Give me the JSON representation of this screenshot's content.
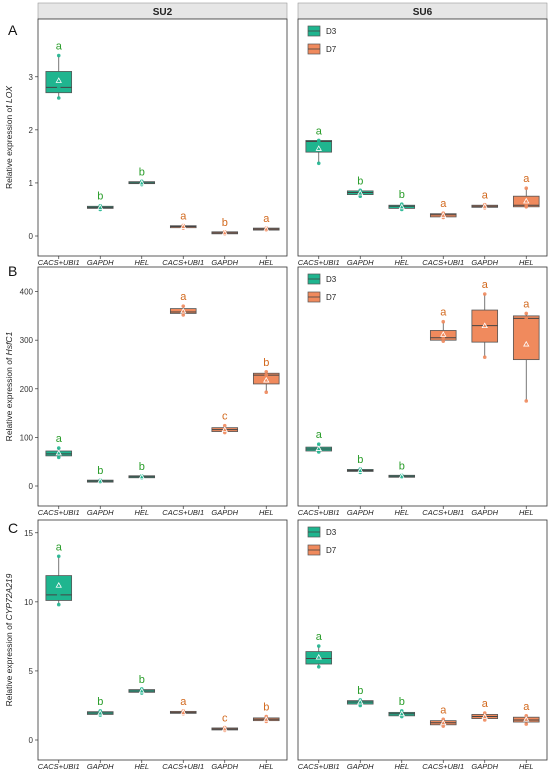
{
  "strip_labels": [
    "SU2",
    "SU6"
  ],
  "colors": {
    "D3": "#1fb58f",
    "D7": "#f08a5d",
    "strip_bg": "#e6e6e6",
    "box_line": "#555555",
    "letter_D3": "#2a9d2a",
    "letter_D7": "#d2691e"
  },
  "legend": [
    "D3",
    "D7"
  ],
  "chart_data": {
    "type": "boxplot",
    "x_categories": [
      "CACS+UBI1",
      "GAPDH",
      "HEL",
      "CACS+UBI1",
      "GAPDH",
      "HEL"
    ],
    "groups": [
      "D3",
      "D3",
      "D3",
      "D7",
      "D7",
      "D7"
    ],
    "rows": [
      {
        "tag": "A",
        "ylabel": "Relative expression of",
        "gene": "LOX",
        "ylim": [
          0,
          3.9
        ],
        "yticks": [
          0,
          1,
          2,
          3
        ],
        "panels": [
          {
            "strip": "SU2",
            "legend": false,
            "boxes": [
              {
                "q1": 2.7,
                "med": 2.8,
                "q3": 3.1,
                "lo": 2.6,
                "hi": 3.4,
                "mean": 2.93,
                "letter": "a"
              },
              {
                "q1": 0.52,
                "med": 0.54,
                "q3": 0.56,
                "lo": 0.5,
                "hi": 0.57,
                "mean": 0.54,
                "letter": "b"
              },
              {
                "q1": 0.99,
                "med": 1.0,
                "q3": 1.02,
                "lo": 0.97,
                "hi": 1.03,
                "mean": 1.0,
                "letter": "b"
              },
              {
                "q1": 0.16,
                "med": 0.18,
                "q3": 0.19,
                "lo": 0.15,
                "hi": 0.2,
                "mean": 0.18,
                "letter": "a"
              },
              {
                "q1": 0.05,
                "med": 0.06,
                "q3": 0.07,
                "lo": 0.04,
                "hi": 0.08,
                "mean": 0.06,
                "letter": "b"
              },
              {
                "q1": 0.12,
                "med": 0.13,
                "q3": 0.14,
                "lo": 0.11,
                "hi": 0.15,
                "mean": 0.13,
                "letter": "a"
              }
            ]
          },
          {
            "strip": "SU6",
            "legend": true,
            "boxes": [
              {
                "q1": 1.58,
                "med": 1.78,
                "q3": 1.8,
                "lo": 1.37,
                "hi": 1.8,
                "mean": 1.65,
                "letter": "a"
              },
              {
                "q1": 0.78,
                "med": 0.82,
                "q3": 0.85,
                "lo": 0.75,
                "hi": 0.86,
                "mean": 0.81,
                "letter": "b"
              },
              {
                "q1": 0.52,
                "med": 0.56,
                "q3": 0.58,
                "lo": 0.5,
                "hi": 0.6,
                "mean": 0.55,
                "letter": "b"
              },
              {
                "q1": 0.36,
                "med": 0.4,
                "q3": 0.42,
                "lo": 0.35,
                "hi": 0.43,
                "mean": 0.39,
                "letter": "a"
              },
              {
                "q1": 0.54,
                "med": 0.56,
                "q3": 0.58,
                "lo": 0.53,
                "hi": 0.59,
                "mean": 0.56,
                "letter": "a"
              },
              {
                "q1": 0.55,
                "med": 0.58,
                "q3": 0.75,
                "lo": 0.55,
                "hi": 0.9,
                "mean": 0.66,
                "letter": "a"
              }
            ]
          }
        ]
      },
      {
        "tag": "B",
        "ylabel": "Relative expression of",
        "gene": "HsfC1",
        "ylim": [
          0,
          430
        ],
        "yticks": [
          0,
          100,
          200,
          300,
          400
        ],
        "panels": [
          {
            "strip": "SU2",
            "legend": false,
            "boxes": [
              {
                "q1": 62,
                "med": 66,
                "q3": 72,
                "lo": 59,
                "hi": 78,
                "mean": 68,
                "letter": "a"
              },
              {
                "q1": 9,
                "med": 10,
                "q3": 11,
                "lo": 8,
                "hi": 12,
                "mean": 10,
                "letter": "b"
              },
              {
                "q1": 18,
                "med": 19,
                "q3": 20,
                "lo": 17,
                "hi": 21,
                "mean": 19,
                "letter": "b"
              },
              {
                "q1": 355,
                "med": 358,
                "q3": 365,
                "lo": 352,
                "hi": 370,
                "mean": 360,
                "letter": "a"
              },
              {
                "q1": 112,
                "med": 116,
                "q3": 120,
                "lo": 110,
                "hi": 124,
                "mean": 116,
                "letter": "c"
              },
              {
                "q1": 210,
                "med": 228,
                "q3": 232,
                "lo": 193,
                "hi": 235,
                "mean": 218,
                "letter": "b"
              }
            ]
          },
          {
            "strip": "SU6",
            "legend": true,
            "boxes": [
              {
                "q1": 72,
                "med": 76,
                "q3": 80,
                "lo": 70,
                "hi": 86,
                "mean": 77,
                "letter": "a"
              },
              {
                "q1": 30,
                "med": 32,
                "q3": 34,
                "lo": 28,
                "hi": 35,
                "mean": 32,
                "letter": "b"
              },
              {
                "q1": 19,
                "med": 20,
                "q3": 21,
                "lo": 18,
                "hi": 22,
                "mean": 20,
                "letter": "b"
              },
              {
                "q1": 300,
                "med": 305,
                "q3": 320,
                "lo": 298,
                "hi": 338,
                "mean": 312,
                "letter": "a"
              },
              {
                "q1": 296,
                "med": 330,
                "q3": 362,
                "lo": 265,
                "hi": 395,
                "mean": 330,
                "letter": "a"
              },
              {
                "q1": 260,
                "med": 345,
                "q3": 350,
                "lo": 175,
                "hi": 355,
                "mean": 292,
                "letter": "a"
              }
            ]
          }
        ]
      },
      {
        "tag": "C",
        "ylabel": "Relative expression of",
        "gene": "CYP72A219",
        "ylim": [
          0,
          15.2
        ],
        "yticks": [
          0,
          5,
          10,
          15
        ],
        "panels": [
          {
            "strip": "SU2",
            "legend": false,
            "boxes": [
              {
                "q1": 10.1,
                "med": 10.5,
                "q3": 11.9,
                "lo": 9.8,
                "hi": 13.3,
                "mean": 11.2,
                "letter": "a"
              },
              {
                "q1": 1.85,
                "med": 1.95,
                "q3": 2.05,
                "lo": 1.8,
                "hi": 2.1,
                "mean": 1.95,
                "letter": "b"
              },
              {
                "q1": 3.45,
                "med": 3.55,
                "q3": 3.65,
                "lo": 3.4,
                "hi": 3.7,
                "mean": 3.55,
                "letter": "b"
              },
              {
                "q1": 1.95,
                "med": 2.0,
                "q3": 2.05,
                "lo": 1.9,
                "hi": 2.1,
                "mean": 2.0,
                "letter": "a"
              },
              {
                "q1": 0.75,
                "med": 0.8,
                "q3": 0.85,
                "lo": 0.7,
                "hi": 0.9,
                "mean": 0.8,
                "letter": "c"
              },
              {
                "q1": 1.4,
                "med": 1.5,
                "q3": 1.6,
                "lo": 1.35,
                "hi": 1.7,
                "mean": 1.5,
                "letter": "b"
              }
            ]
          },
          {
            "strip": "SU6",
            "legend": true,
            "boxes": [
              {
                "q1": 5.5,
                "med": 5.9,
                "q3": 6.4,
                "lo": 5.3,
                "hi": 6.8,
                "mean": 6.0,
                "letter": "a"
              },
              {
                "q1": 2.6,
                "med": 2.75,
                "q3": 2.85,
                "lo": 2.5,
                "hi": 2.9,
                "mean": 2.75,
                "letter": "b"
              },
              {
                "q1": 1.75,
                "med": 1.9,
                "q3": 2.0,
                "lo": 1.7,
                "hi": 2.1,
                "mean": 1.9,
                "letter": "b"
              },
              {
                "q1": 1.1,
                "med": 1.25,
                "q3": 1.4,
                "lo": 1.0,
                "hi": 1.5,
                "mean": 1.25,
                "letter": "a"
              },
              {
                "q1": 1.55,
                "med": 1.7,
                "q3": 1.85,
                "lo": 1.45,
                "hi": 1.95,
                "mean": 1.7,
                "letter": "a"
              },
              {
                "q1": 1.3,
                "med": 1.45,
                "q3": 1.65,
                "lo": 1.15,
                "hi": 1.75,
                "mean": 1.5,
                "letter": "a"
              }
            ]
          }
        ]
      }
    ]
  }
}
